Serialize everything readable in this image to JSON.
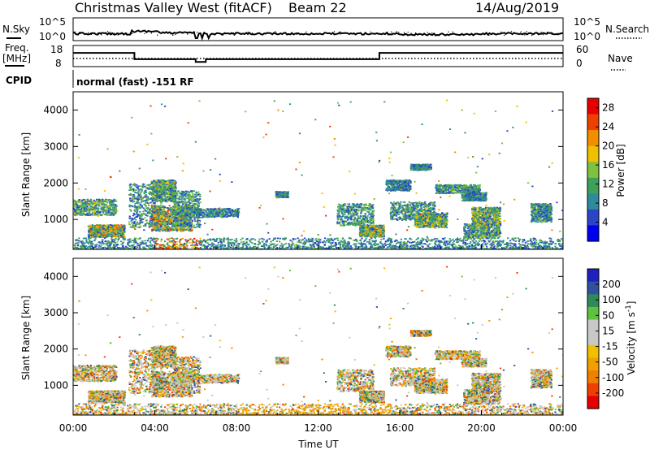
{
  "header": {
    "title": "Christmas Valley West (fitACF)",
    "beam": "Beam 22",
    "date": "14/Aug/2019"
  },
  "labels": {
    "nsky": "N.Sky",
    "nsearch": "N.Search",
    "freq_l1": "Freq.",
    "freq_l2": "[MHz]",
    "nave": "Nave",
    "cpid": "CPID",
    "cpid_text": "normal (fast) -151 RF",
    "noise_t1": "10^5",
    "noise_t0": "10^0",
    "noise_r1": "10^5",
    "noise_r0": "10^0",
    "freq_t18": "18",
    "freq_t8": "8",
    "nave_t60": "60",
    "nave_t0": "0"
  },
  "colors": {
    "power_scale": [
      "#0000ee",
      "#2a46c8",
      "#2f8a9a",
      "#3fa05a",
      "#80c040",
      "#f0c000",
      "#f09000",
      "#f04000",
      "#e80000"
    ],
    "velocity_scale": [
      "#e80000",
      "#f04000",
      "#f08000",
      "#f0a000",
      "#f0c000",
      "#c8c8c8",
      "#c8c8c8",
      "#60c040",
      "#2e8b57",
      "#3050a0",
      "#2020c0"
    ]
  },
  "chart_data": [
    {
      "type": "line",
      "name": "noise-panel",
      "series": [
        {
          "name": "N.Sky"
        },
        {
          "name": "N.Search"
        }
      ]
    },
    {
      "type": "line",
      "name": "frequency-panel",
      "series": [
        {
          "name": "Freq.",
          "x": [
            "00:00",
            "03:00",
            "03:00",
            "06:00",
            "06:00",
            "06:30",
            "06:30",
            "15:00",
            "15:00",
            "24:00"
          ],
          "y": [
            14.5,
            14.5,
            11.5,
            11.5,
            10.2,
            10.2,
            11.5,
            11.5,
            14.5,
            14.5
          ]
        },
        {
          "name": "Nave"
        }
      ],
      "ylim": [
        8,
        18
      ]
    },
    {
      "type": "heatmap",
      "name": "power-panel",
      "ylabel": "Slant Range [km]",
      "xlim": [
        "00:00",
        "24:00"
      ],
      "ylim": [
        180,
        4500
      ],
      "yticks": [
        1000,
        2000,
        3000,
        4000
      ],
      "colorbar": {
        "label": "Power [dB]",
        "ticks": [
          4,
          8,
          12,
          16,
          20,
          24,
          28
        ],
        "range": [
          0,
          30
        ]
      }
    },
    {
      "type": "heatmap",
      "name": "velocity-panel",
      "ylabel": "Slant Range [km]",
      "xlabel": "Time UT",
      "xticks": [
        "00:00",
        "04:00",
        "08:00",
        "12:00",
        "16:00",
        "20:00",
        "00:00"
      ],
      "xlim": [
        "00:00",
        "24:00"
      ],
      "ylim": [
        180,
        4500
      ],
      "yticks": [
        1000,
        2000,
        3000,
        4000
      ],
      "colorbar": {
        "label": "Velocity [m s^-1]",
        "ticks": [
          200,
          100,
          50,
          15,
          -15,
          -50,
          -100,
          -200
        ]
      }
    }
  ]
}
